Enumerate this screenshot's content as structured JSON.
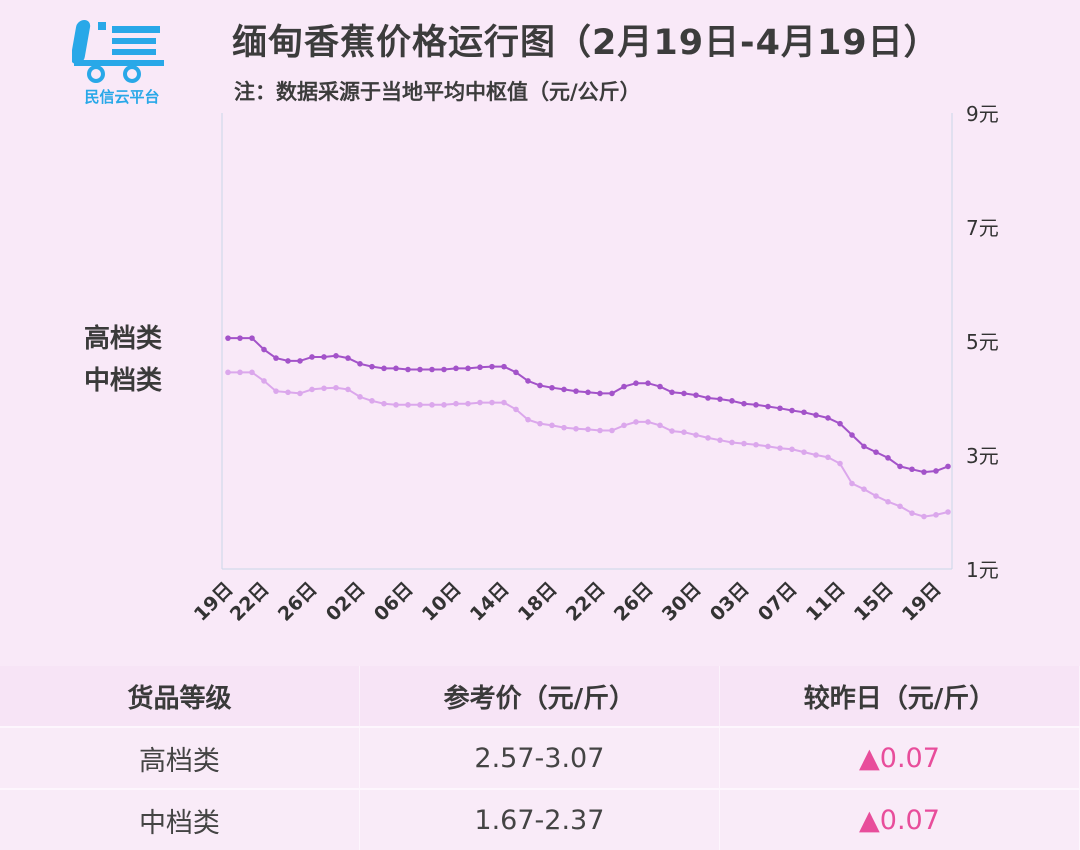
{
  "header": {
    "logo_text": "民信云平台",
    "title": "缅甸香蕉价格运行图（2月19日-4月19日）",
    "subtitle": "注：数据采源于当地平均中枢值（元/公斤）"
  },
  "side_legend": [
    "高档类",
    "中档类"
  ],
  "colors": {
    "high_series": "#a353c9",
    "mid_series": "#dba7ec",
    "axis": "#c9d8e8",
    "up_arrow": "#e84d9b",
    "logo": "#29a8e8"
  },
  "chart_data": {
    "type": "line",
    "y_unit_suffix": "元",
    "ylim": [
      1,
      9
    ],
    "yticks": [
      1,
      3,
      5,
      7,
      9
    ],
    "x_tick_labels": [
      "19日",
      "22日",
      "26日",
      "02日",
      "06日",
      "10日",
      "14日",
      "18日",
      "22日",
      "26日",
      "30日",
      "03日",
      "07日",
      "11日",
      "15日",
      "19日"
    ],
    "x_tick_indices": [
      0,
      3,
      7,
      11,
      15,
      19,
      23,
      27,
      31,
      35,
      39,
      43,
      47,
      51,
      55,
      59
    ],
    "grid": false,
    "series": [
      {
        "name": "高档类",
        "values": [
          5.05,
          5.05,
          5.05,
          4.85,
          4.7,
          4.65,
          4.65,
          4.72,
          4.72,
          4.74,
          4.7,
          4.6,
          4.55,
          4.52,
          4.52,
          4.5,
          4.5,
          4.5,
          4.5,
          4.52,
          4.52,
          4.54,
          4.55,
          4.55,
          4.45,
          4.3,
          4.22,
          4.18,
          4.15,
          4.12,
          4.1,
          4.08,
          4.08,
          4.2,
          4.26,
          4.26,
          4.2,
          4.1,
          4.08,
          4.05,
          4.0,
          3.98,
          3.95,
          3.9,
          3.88,
          3.85,
          3.82,
          3.78,
          3.75,
          3.7,
          3.65,
          3.55,
          3.35,
          3.15,
          3.05,
          2.95,
          2.8,
          2.75,
          2.7,
          2.72,
          2.8
        ]
      },
      {
        "name": "中档类",
        "values": [
          4.45,
          4.45,
          4.45,
          4.3,
          4.12,
          4.1,
          4.08,
          4.15,
          4.17,
          4.18,
          4.15,
          4.02,
          3.95,
          3.9,
          3.88,
          3.88,
          3.88,
          3.88,
          3.88,
          3.9,
          3.9,
          3.92,
          3.92,
          3.92,
          3.8,
          3.62,
          3.55,
          3.52,
          3.48,
          3.46,
          3.45,
          3.43,
          3.43,
          3.52,
          3.58,
          3.58,
          3.52,
          3.42,
          3.4,
          3.35,
          3.3,
          3.26,
          3.22,
          3.2,
          3.18,
          3.15,
          3.12,
          3.1,
          3.05,
          3.0,
          2.96,
          2.85,
          2.5,
          2.4,
          2.28,
          2.18,
          2.1,
          1.98,
          1.92,
          1.95,
          2.0
        ]
      }
    ]
  },
  "table": {
    "headers": [
      "货品等级",
      "参考价（元/斤）",
      "较昨日（元/斤）"
    ],
    "rows": [
      {
        "grade": "高档类",
        "price": "2.57-3.07",
        "change": "▲0.07"
      },
      {
        "grade": "中档类",
        "price": "1.67-2.37",
        "change": "▲0.07"
      }
    ]
  }
}
